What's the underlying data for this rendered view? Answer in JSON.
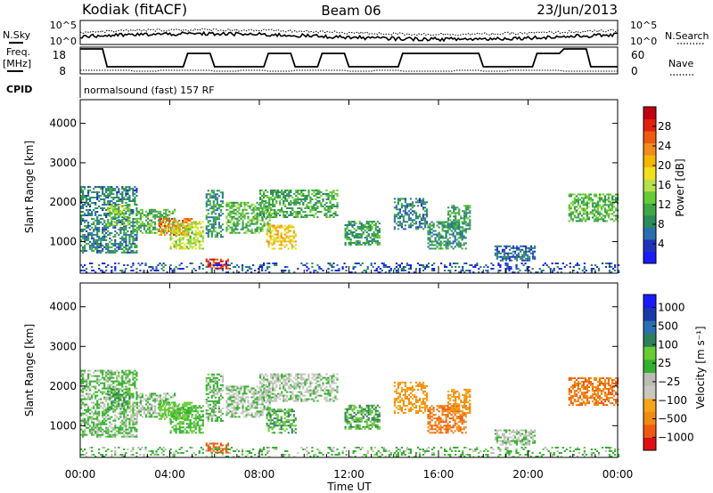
{
  "header": {
    "station": "Kodiak (fitACF)",
    "beam": "Beam 06",
    "date": "23/Jun/2013",
    "cpid_label": "CPID",
    "cpid_value": "normalsound (fast) 157 RF"
  },
  "top_panels": {
    "nsky_label": "N.Sky",
    "nsearch_label": "N.Search",
    "nsky_ticks": [
      "10^5",
      "10^0"
    ],
    "nsearch_ticks": [
      "10^5",
      "10^0"
    ],
    "freq_label_line1": "Freq.",
    "freq_label_line2": "[MHz]",
    "freq_ticks": [
      "18",
      "8"
    ],
    "nave_label": "Nave",
    "nave_ticks": [
      "60",
      "0"
    ]
  },
  "colors": {
    "power_scale": [
      "#1a1aff",
      "#2233bb",
      "#2a6fb0",
      "#2a8c5a",
      "#3fa845",
      "#66cc33",
      "#b8e04a",
      "#f0e020",
      "#f5b800",
      "#f28c1c",
      "#ee5a10",
      "#e02010",
      "#c00010"
    ],
    "velocity_scale": [
      "#e01010",
      "#f05a10",
      "#f08c10",
      "#f5a51c",
      "#c8c8c0",
      "#bcbcb4",
      "#33b030",
      "#66cc33",
      "#2e7f5a",
      "#2a6fb0",
      "#1a3aaa",
      "#1a1aff"
    ]
  },
  "chart_data": [
    {
      "type": "heatmap",
      "name": "Power",
      "ylabel": "Slant Range [km]",
      "yticks": [
        "1000",
        "2000",
        "3000",
        "4000"
      ],
      "ylim": [
        200,
        4600
      ],
      "colorbar_label": "Power [dB]",
      "colorbar_ticks": [
        "4",
        "8",
        "12",
        "16",
        "20",
        "24",
        "28"
      ],
      "colorbar_range": [
        0,
        32
      ]
    },
    {
      "type": "heatmap",
      "name": "Velocity",
      "ylabel": "Slant Range [km]",
      "yticks": [
        "1000",
        "2000",
        "3000",
        "4000"
      ],
      "ylim": [
        200,
        4600
      ],
      "colorbar_label": "Velocity [m s⁻¹]",
      "colorbar_ticks": [
        "1000",
        "500",
        "100",
        "25",
        "−25",
        "−100",
        "−500",
        "−1000"
      ]
    }
  ],
  "x_axis": {
    "xlabel": "Time UT",
    "xticks": [
      "00:00",
      "04:00",
      "08:00",
      "12:00",
      "16:00",
      "20:00",
      "00:00"
    ],
    "xlim_hours": [
      0,
      24
    ]
  },
  "echo_regions": [
    {
      "t": [
        0.0,
        2.5
      ],
      "r": [
        700,
        2400
      ],
      "power": 8,
      "vel": 25
    },
    {
      "t": [
        1.2,
        2.2
      ],
      "r": [
        1400,
        1900
      ],
      "power": 14,
      "vel": 150
    },
    {
      "t": [
        2.5,
        4.2
      ],
      "r": [
        1200,
        1800
      ],
      "power": 12,
      "vel": 0
    },
    {
      "t": [
        3.5,
        5.0
      ],
      "r": [
        1150,
        1600
      ],
      "power": 24,
      "vel": 100
    },
    {
      "t": [
        4.0,
        5.5
      ],
      "r": [
        800,
        1500
      ],
      "power": 16,
      "vel": 50
    },
    {
      "t": [
        5.6,
        6.6
      ],
      "r": [
        300,
        550
      ],
      "power": 28,
      "vel": -400
    },
    {
      "t": [
        5.6,
        6.4
      ],
      "r": [
        1100,
        2300
      ],
      "power": 9,
      "vel": 25
    },
    {
      "t": [
        6.5,
        8.5
      ],
      "r": [
        1200,
        2000
      ],
      "power": 12,
      "vel": 0
    },
    {
      "t": [
        8.0,
        11.5
      ],
      "r": [
        1600,
        2300
      ],
      "power": 11,
      "vel": 0
    },
    {
      "t": [
        8.3,
        9.6
      ],
      "r": [
        800,
        1400
      ],
      "power": 20,
      "vel": 150
    },
    {
      "t": [
        11.8,
        13.4
      ],
      "r": [
        900,
        1500
      ],
      "power": 10,
      "vel": 150
    },
    {
      "t": [
        14.0,
        15.5
      ],
      "r": [
        1300,
        2100
      ],
      "power": 8,
      "vel": -150
    },
    {
      "t": [
        15.5,
        17.2
      ],
      "r": [
        800,
        1500
      ],
      "power": 9,
      "vel": -300
    },
    {
      "t": [
        16.4,
        17.4
      ],
      "r": [
        1300,
        1900
      ],
      "power": 10,
      "vel": -150
    },
    {
      "t": [
        18.5,
        20.3
      ],
      "r": [
        500,
        900
      ],
      "power": 6,
      "vel": 0
    },
    {
      "t": [
        21.8,
        24.0
      ],
      "r": [
        1500,
        2200
      ],
      "power": 12,
      "vel": -300
    },
    {
      "t": [
        0.0,
        24.0
      ],
      "r": [
        200,
        450
      ],
      "power": 5,
      "vel": 25
    }
  ]
}
